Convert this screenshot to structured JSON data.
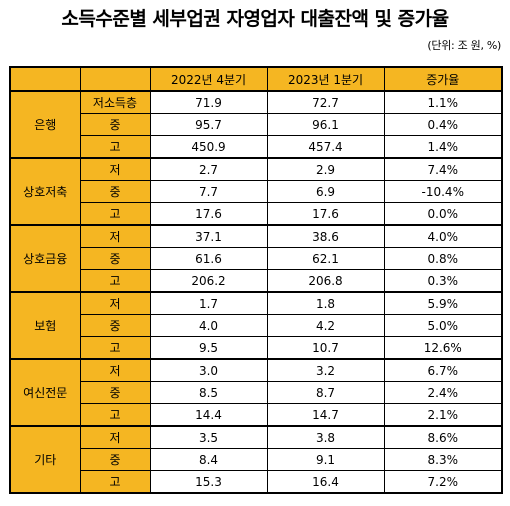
{
  "title": "소득수준별 세부업권 자영업자 대출잔액 및 증가율",
  "unit": "(단위: 조 원, %)",
  "header": {
    "col_blank1": "",
    "col_blank2": "",
    "col_q4_2022": "2022년 4분기",
    "col_q1_2023": "2023년 1분기",
    "col_growth": "증가율"
  },
  "groups": [
    {
      "name": "은행",
      "rows": [
        {
          "level": "저소득층",
          "q4_2022": "71.9",
          "q1_2023": "72.7",
          "growth": "1.1%"
        },
        {
          "level": "중",
          "q4_2022": "95.7",
          "q1_2023": "96.1",
          "growth": "0.4%"
        },
        {
          "level": "고",
          "q4_2022": "450.9",
          "q1_2023": "457.4",
          "growth": "1.4%"
        }
      ]
    },
    {
      "name": "상호저축",
      "rows": [
        {
          "level": "저",
          "q4_2022": "2.7",
          "q1_2023": "2.9",
          "growth": "7.4%"
        },
        {
          "level": "중",
          "q4_2022": "7.7",
          "q1_2023": "6.9",
          "growth": "-10.4%"
        },
        {
          "level": "고",
          "q4_2022": "17.6",
          "q1_2023": "17.6",
          "growth": "0.0%"
        }
      ]
    },
    {
      "name": "상호금융",
      "rows": [
        {
          "level": "저",
          "q4_2022": "37.1",
          "q1_2023": "38.6",
          "growth": "4.0%"
        },
        {
          "level": "중",
          "q4_2022": "61.6",
          "q1_2023": "62.1",
          "growth": "0.8%"
        },
        {
          "level": "고",
          "q4_2022": "206.2",
          "q1_2023": "206.8",
          "growth": "0.3%"
        }
      ]
    },
    {
      "name": "보험",
      "rows": [
        {
          "level": "저",
          "q4_2022": "1.7",
          "q1_2023": "1.8",
          "growth": "5.9%"
        },
        {
          "level": "중",
          "q4_2022": "4.0",
          "q1_2023": "4.2",
          "growth": "5.0%"
        },
        {
          "level": "고",
          "q4_2022": "9.5",
          "q1_2023": "10.7",
          "growth": "12.6%"
        }
      ]
    },
    {
      "name": "여신전문",
      "rows": [
        {
          "level": "저",
          "q4_2022": "3.0",
          "q1_2023": "3.2",
          "growth": "6.7%"
        },
        {
          "level": "중",
          "q4_2022": "8.5",
          "q1_2023": "8.7",
          "growth": "2.4%"
        },
        {
          "level": "고",
          "q4_2022": "14.4",
          "q1_2023": "14.7",
          "growth": "2.1%"
        }
      ]
    },
    {
      "name": "기타",
      "rows": [
        {
          "level": "저",
          "q4_2022": "3.5",
          "q1_2023": "3.8",
          "growth": "8.6%"
        },
        {
          "level": "중",
          "q4_2022": "8.4",
          "q1_2023": "9.1",
          "growth": "8.3%"
        },
        {
          "level": "고",
          "q4_2022": "15.3",
          "q1_2023": "16.4",
          "growth": "7.2%"
        }
      ]
    }
  ],
  "colors": {
    "header_fill": "#f5b622",
    "border": "#000000",
    "cell_fill": "#ffffff"
  }
}
